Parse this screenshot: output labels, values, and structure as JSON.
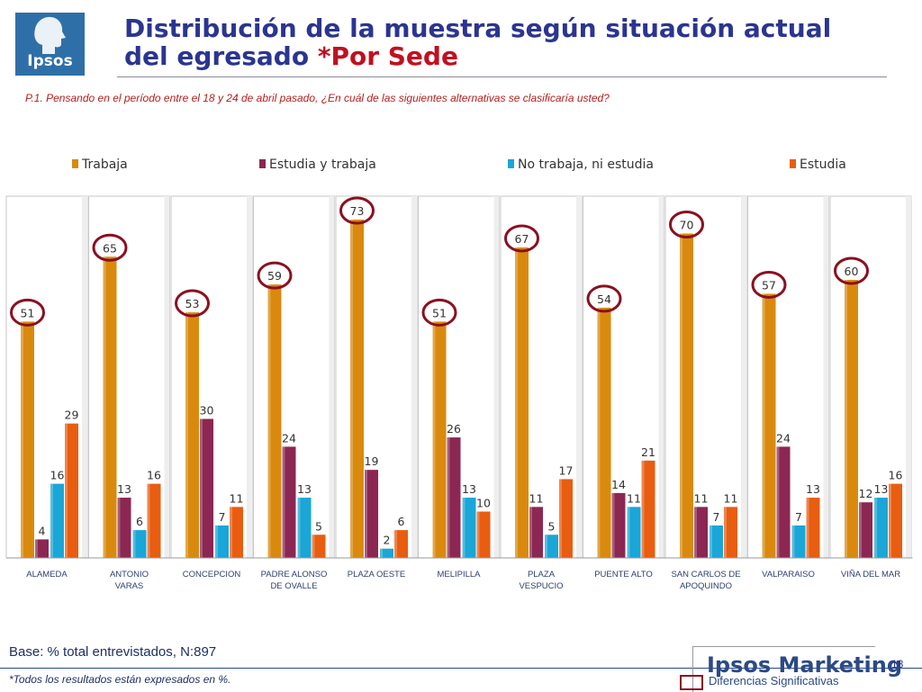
{
  "header": {
    "logo_text": "Ipsos",
    "title_line1": "Distribución de la muestra según situación actual",
    "title_line2": "del egresado ",
    "title_accent": "*Por Sede",
    "question": "P.1.  Pensando en el período entre el 18 y 24 de abril pasado, ¿En cuál de las siguientes alternativas se clasificaría usted?"
  },
  "footer": {
    "base": "Base: % total entrevistados, N:897",
    "note": "*Todos los resultados están expresados en %.",
    "brand": "Ipsos Marketing",
    "page_number": "18",
    "legend_significance": "Diferencias Significativas"
  },
  "chart_data": {
    "type": "bar",
    "categories": [
      [
        "ALAMEDA"
      ],
      [
        "ANTONIO",
        "VARAS"
      ],
      [
        "CONCEPCION"
      ],
      [
        "PADRE ALONSO",
        "DE OVALLE"
      ],
      [
        "PLAZA OESTE"
      ],
      [
        "MELIPILLA"
      ],
      [
        "PLAZA",
        "VESPUCIO"
      ],
      [
        "PUENTE ALTO"
      ],
      [
        "SAN CARLOS DE",
        "APOQUINDO"
      ],
      [
        "VALPARAISO"
      ],
      [
        "VIÑA DEL MAR"
      ]
    ],
    "series": [
      {
        "name": "Trabaja",
        "color": "#d98a0e",
        "values": [
          51,
          65,
          53,
          59,
          73,
          51,
          67,
          54,
          70,
          57,
          60
        ]
      },
      {
        "name": "Estudia y trabaja",
        "color": "#8b2752",
        "values": [
          4,
          13,
          30,
          24,
          19,
          26,
          11,
          14,
          11,
          24,
          12
        ]
      },
      {
        "name": "No trabaja, ni estudia",
        "color": "#1aa6d6",
        "values": [
          16,
          6,
          7,
          13,
          2,
          13,
          5,
          11,
          7,
          7,
          13
        ]
      },
      {
        "name": "Estudia",
        "color": "#e85d10",
        "values": [
          29,
          16,
          11,
          5,
          6,
          10,
          17,
          21,
          11,
          13,
          16
        ]
      }
    ],
    "significant": {
      "series": "Trabaja",
      "categories": "all",
      "marker_color": "#8a1020"
    },
    "legend_position": "top",
    "ylim": [
      0,
      80
    ],
    "grid": false
  }
}
